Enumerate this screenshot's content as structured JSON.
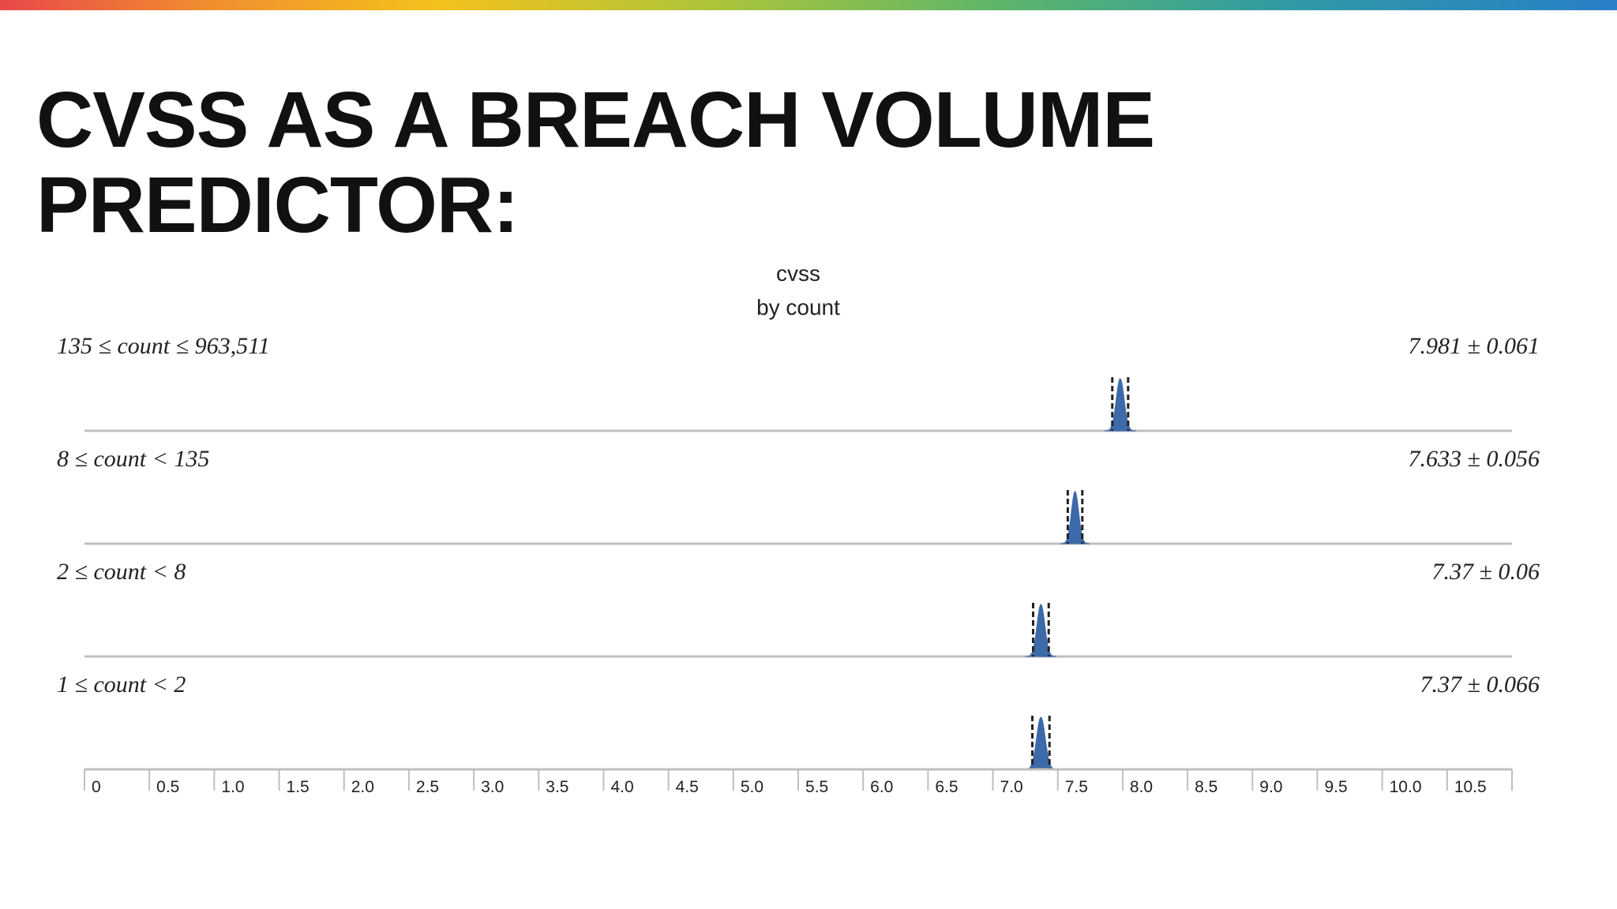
{
  "slide": {
    "title": "CVSS AS A BREACH VOLUME PREDICTOR:"
  },
  "colors": {
    "fill": "#3d6aa8",
    "axis": "#bfbfbf",
    "text": "#111111"
  },
  "chart_data": {
    "type": "area",
    "title": "cvss",
    "subtitle": "by count",
    "xlim": [
      0,
      11.0
    ],
    "x_ticks": [
      "0",
      "0.5",
      "1.0",
      "1.5",
      "2.0",
      "2.5",
      "3.0",
      "3.5",
      "4.0",
      "4.5",
      "5.0",
      "5.5",
      "6.0",
      "6.5",
      "7.0",
      "7.5",
      "8.0",
      "8.5",
      "9.0",
      "9.5",
      "10.0",
      "10.5"
    ],
    "x_tick_values": [
      0,
      0.5,
      1.0,
      1.5,
      2.0,
      2.5,
      3.0,
      3.5,
      4.0,
      4.5,
      5.0,
      5.5,
      6.0,
      6.5,
      7.0,
      7.5,
      8.0,
      8.5,
      9.0,
      9.5,
      10.0,
      10.5
    ],
    "series": [
      {
        "name": "135 ≤ count ≤ 963,511",
        "stat": "7.981 ± 0.061",
        "mean": 7.981,
        "halfwidth": 0.061
      },
      {
        "name": "8 ≤ count < 135",
        "stat": "7.633 ± 0.056",
        "mean": 7.633,
        "halfwidth": 0.056
      },
      {
        "name": "2 ≤ count < 8",
        "stat": "7.37 ± 0.06",
        "mean": 7.37,
        "halfwidth": 0.06
      },
      {
        "name": "1 ≤ count < 2",
        "stat": "7.37 ± 0.066",
        "mean": 7.37,
        "halfwidth": 0.066
      }
    ]
  }
}
